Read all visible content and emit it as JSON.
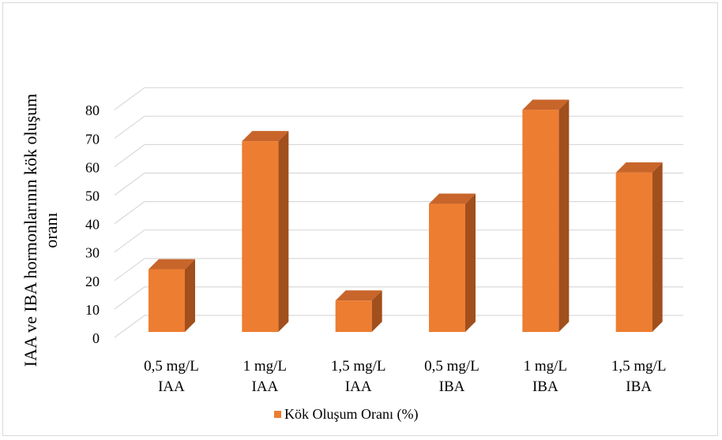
{
  "chart_data": {
    "type": "bar",
    "categories": [
      [
        "0,5 mg/L",
        "IAA"
      ],
      [
        "1 mg/L",
        "IAA"
      ],
      [
        "1,5 mg/L",
        "IAA"
      ],
      [
        "0,5 mg/L",
        "IBA"
      ],
      [
        "1 mg/L",
        "IBA"
      ],
      [
        "1,5 mg/L",
        "IBA"
      ]
    ],
    "series": [
      {
        "name": "Kök Oluşum Oranı (%)",
        "values": [
          22,
          67,
          11,
          45,
          78,
          56
        ]
      }
    ],
    "ylabel_lines": [
      "IAA ve IBA hormonlarının kök oluşum",
      "oranı"
    ],
    "ylim": [
      0,
      80
    ],
    "yticks": [
      "0",
      "10",
      "20",
      "30",
      "40",
      "50",
      "60",
      "70",
      "80"
    ],
    "grid": true,
    "legend_position": "bottom",
    "colors": {
      "bar_front": "#ed7d31",
      "bar_side": "#a14f1c",
      "bar_top": "#c8652a",
      "grid": "#d9d9d9"
    }
  }
}
